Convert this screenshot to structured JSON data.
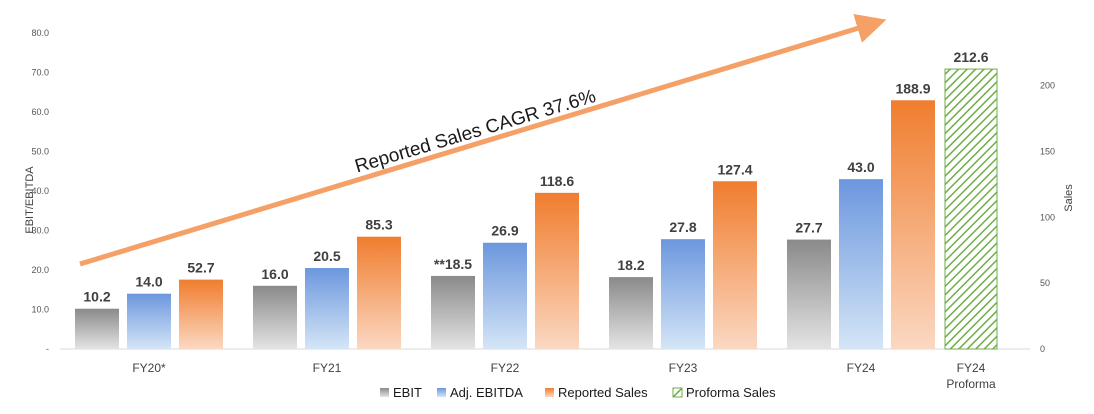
{
  "chart_data": {
    "type": "bar",
    "categories": [
      "FY20*",
      "FY21",
      "FY22",
      "FY23",
      "FY24",
      "FY24 Proforma"
    ],
    "series": [
      {
        "name": "EBIT",
        "axis": "left",
        "values": [
          10.2,
          16.0,
          18.5,
          18.2,
          27.7,
          null
        ],
        "labels": [
          "10.2",
          "16.0",
          "**18.5",
          "18.2",
          "27.7",
          ""
        ],
        "color": "#8c8c8c"
      },
      {
        "name": "Adj. EBITDA",
        "axis": "left",
        "values": [
          14.0,
          20.5,
          26.9,
          27.8,
          43.0,
          null
        ],
        "labels": [
          "14.0",
          "20.5",
          "26.9",
          "27.8",
          "43.0",
          ""
        ],
        "color": "#6f9ae0"
      },
      {
        "name": "Reported Sales",
        "axis": "right",
        "values": [
          52.7,
          85.3,
          118.6,
          127.4,
          188.9,
          null
        ],
        "labels": [
          "52.7",
          "85.3",
          "118.6",
          "127.4",
          "188.9",
          ""
        ],
        "color": "#f08a3c"
      },
      {
        "name": "Proforma Sales",
        "axis": "right",
        "values": [
          null,
          null,
          null,
          null,
          null,
          212.6
        ],
        "labels": [
          "",
          "",
          "",
          "",
          "",
          "212.6"
        ],
        "color": "#70ad47"
      }
    ],
    "ylabel": "EBIT/EBITDA",
    "ylim": [
      0,
      80
    ],
    "yticks": [
      "-",
      "10.0",
      "20.0",
      "30.0",
      "40.0",
      "50.0",
      "60.0",
      "70.0",
      "80.0"
    ],
    "y2label": "Sales",
    "y2lim": [
      0,
      240
    ],
    "y2ticks": [
      "0",
      "50",
      "100",
      "150",
      "200"
    ],
    "annotation": "Reported Sales CAGR 37.6%",
    "legend_position": "bottom"
  }
}
